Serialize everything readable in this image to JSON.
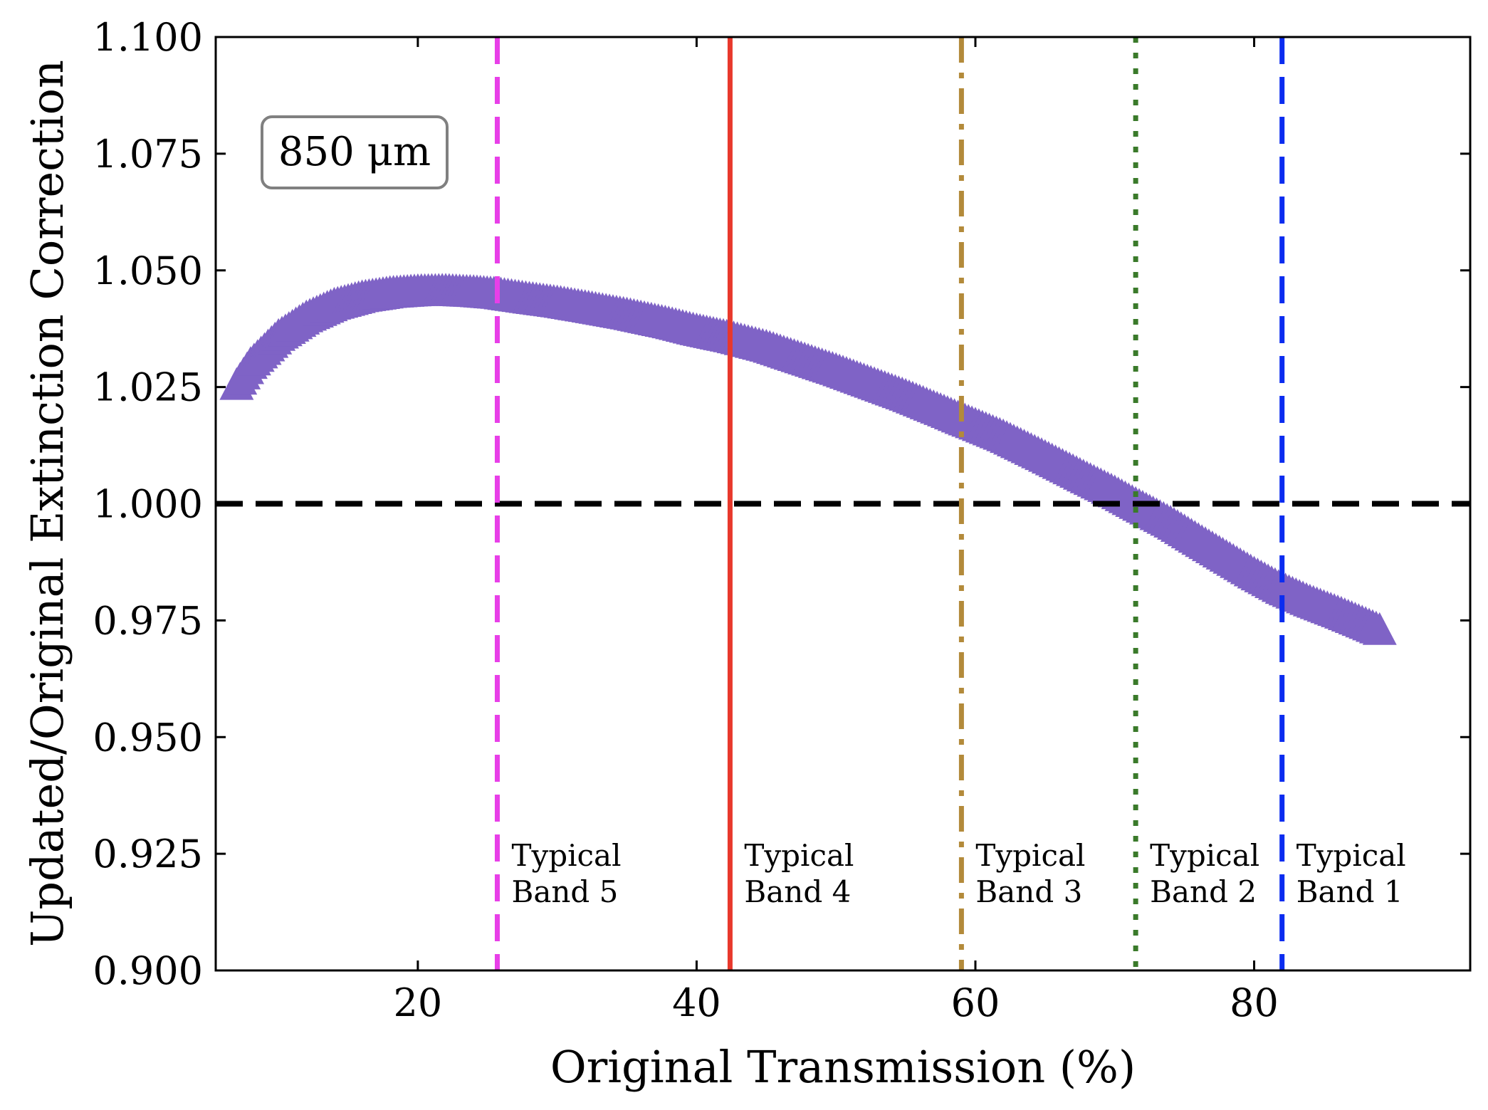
{
  "chart_data": {
    "type": "scatter",
    "xlabel": "Original Transmission (%)",
    "ylabel": "Updated/Original Extinction Correction",
    "xlim": [
      5.5,
      95.5
    ],
    "ylim": [
      0.9,
      1.1
    ],
    "xticks": [
      20,
      40,
      60,
      80
    ],
    "xtick_labels": [
      "20",
      "40",
      "60",
      "80"
    ],
    "yticks": [
      0.9,
      0.925,
      0.95,
      0.975,
      1.0,
      1.025,
      1.05,
      1.075,
      1.1
    ],
    "ytick_labels": [
      "0.900",
      "0.925",
      "0.950",
      "0.975",
      "1.000",
      "1.025",
      "1.050",
      "1.075",
      "1.100"
    ],
    "grid": false,
    "annotation": "850 μm",
    "series": [
      {
        "marker": "triangle-up",
        "color": "#7f63c6",
        "x": [
          7,
          8,
          9,
          10,
          12,
          14,
          16,
          18,
          20,
          22,
          24,
          25.7,
          28,
          30,
          32,
          35,
          38,
          40,
          42.4,
          45,
          48,
          50,
          52,
          55,
          58,
          59,
          60,
          62,
          65,
          68,
          70,
          71.5,
          72,
          74,
          76,
          78,
          80,
          82,
          84,
          86,
          88,
          89
        ],
        "y": [
          1.025,
          1.0295,
          1.0325,
          1.0355,
          1.0395,
          1.0422,
          1.0438,
          1.0447,
          1.0451,
          1.0452,
          1.0449,
          1.0445,
          1.0435,
          1.0427,
          1.0417,
          1.0401,
          1.0382,
          1.0367,
          1.0352,
          1.0332,
          1.0302,
          1.0282,
          1.026,
          1.0227,
          1.019,
          1.0177,
          1.0165,
          1.014,
          1.0096,
          1.005,
          1.002,
          0.9995,
          0.9987,
          0.9955,
          0.9918,
          0.9882,
          0.9846,
          0.9813,
          0.9786,
          0.9763,
          0.9738,
          0.9725
        ]
      }
    ],
    "reference_lines": [
      {
        "orientation": "horizontal",
        "value": 1.0,
        "color": "#000000",
        "style": "dashed"
      }
    ],
    "band_lines": [
      {
        "x": 25.7,
        "color": "#e83fe8",
        "style": "dashed",
        "label_line1": "Typical",
        "label_line2": "Band 5"
      },
      {
        "x": 42.4,
        "color": "#e8382c",
        "style": "solid",
        "label_line1": "Typical",
        "label_line2": "Band 4"
      },
      {
        "x": 59.0,
        "color": "#b38a3a",
        "style": "dashdot",
        "label_line1": "Typical",
        "label_line2": "Band 3"
      },
      {
        "x": 71.5,
        "color": "#3a7a2a",
        "style": "dotted",
        "label_line1": "Typical",
        "label_line2": "Band 2"
      },
      {
        "x": 82.0,
        "color": "#0b2cf0",
        "style": "dashed",
        "label_line1": "Typical",
        "label_line2": "Band 1"
      }
    ]
  }
}
